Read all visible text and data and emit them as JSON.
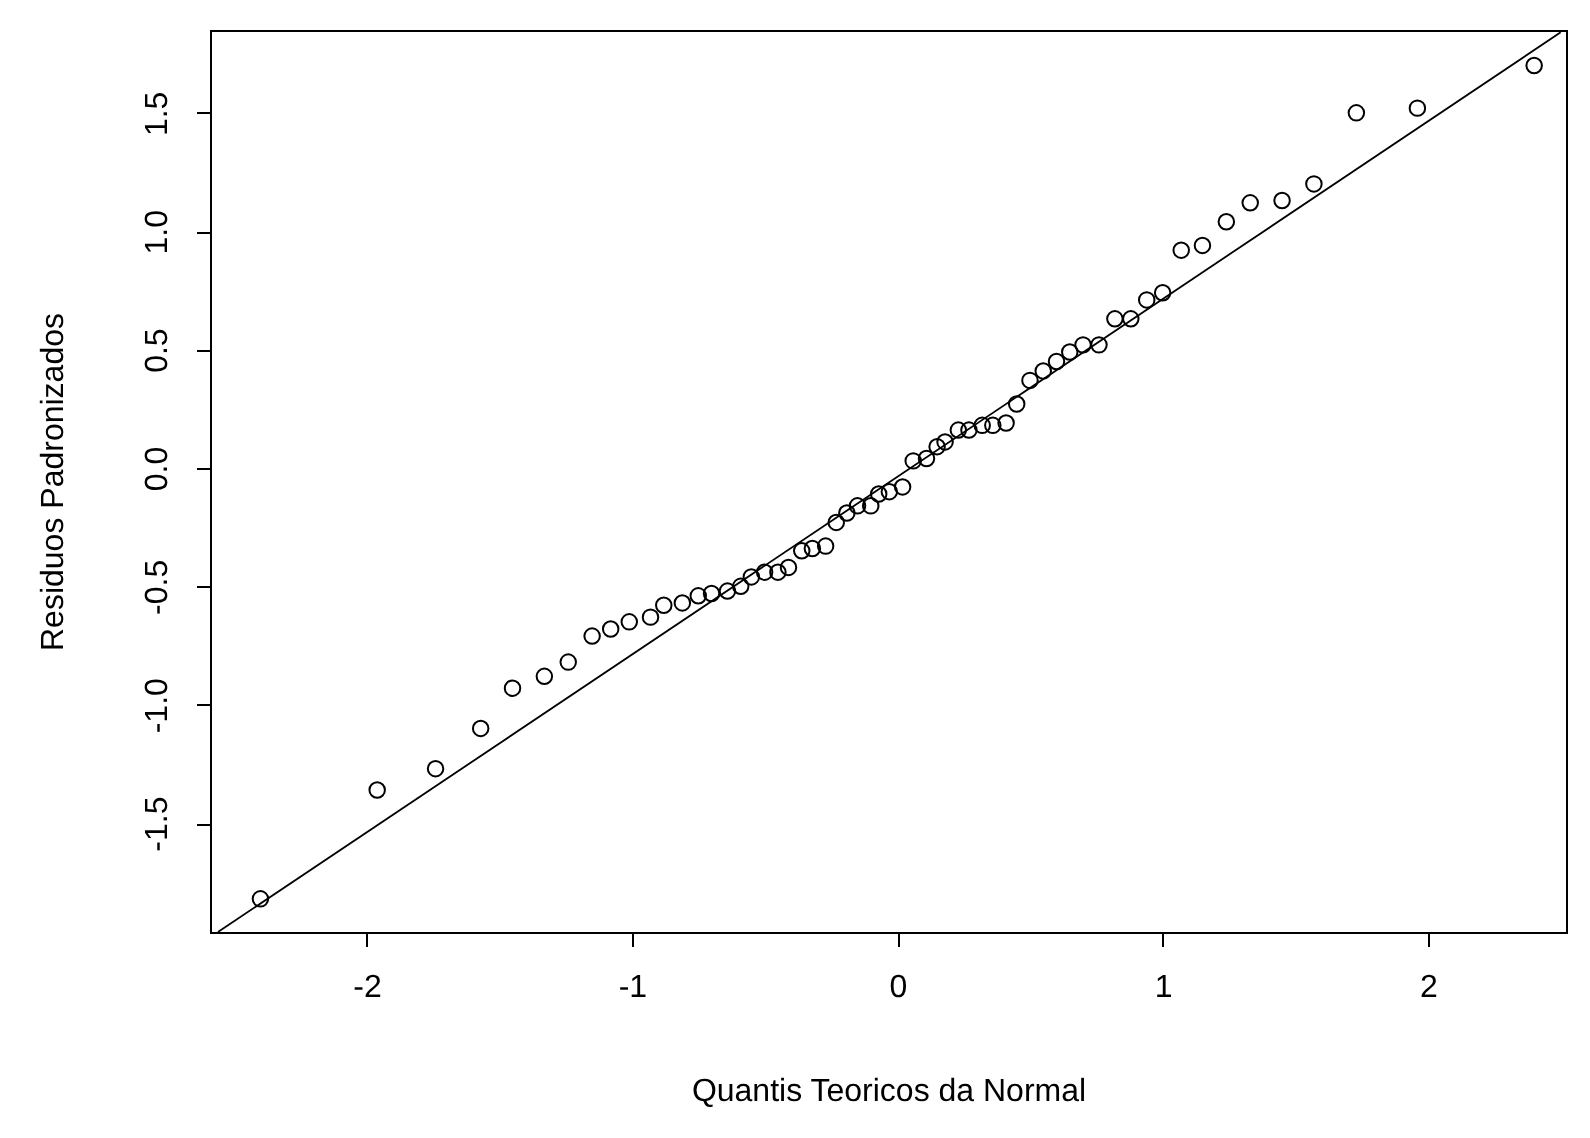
{
  "chart_data": {
    "type": "scatter",
    "xlabel": "Quantis Teoricos da Normal",
    "ylabel": "Residuos Padronizados",
    "marker": "circle",
    "xlim": [
      -2.59,
      2.52
    ],
    "ylim": [
      -1.96,
      1.85
    ],
    "xticks": [
      -2,
      -1,
      0,
      1,
      2
    ],
    "yticks": [
      -1.5,
      {
        "value": -1,
        "label": "-1.0"
      },
      -0.5,
      {
        "value": 0,
        "label": "0.0"
      },
      0.5,
      {
        "value": 1,
        "label": "1.0"
      },
      1.5
    ],
    "series": [
      {
        "color": "#000000",
        "x": [
          -2.4,
          -1.96,
          -1.74,
          -1.57,
          -1.45,
          -1.33,
          -1.24,
          -1.15,
          -1.08,
          -1.01,
          -0.93,
          -0.88,
          -0.81,
          -0.75,
          -0.7,
          -0.64,
          -0.59,
          -0.55,
          -0.5,
          -0.45,
          -0.41,
          -0.36,
          -0.32,
          -0.27,
          -0.23,
          -0.19,
          -0.15,
          -0.1,
          -0.07,
          -0.03,
          0.02,
          0.06,
          0.11,
          0.15,
          0.18,
          0.23,
          0.27,
          0.32,
          0.36,
          0.41,
          0.45,
          0.5,
          0.55,
          0.6,
          0.65,
          0.7,
          0.76,
          0.82,
          0.88,
          0.94,
          1.0,
          1.07,
          1.15,
          1.24,
          1.33,
          1.45,
          1.57,
          1.73,
          1.96,
          2.4
        ],
        "values": [
          -1.82,
          -1.36,
          -1.27,
          -1.1,
          -0.93,
          -0.88,
          -0.82,
          -0.71,
          -0.68,
          -0.65,
          -0.63,
          -0.58,
          -0.57,
          -0.54,
          -0.53,
          -0.52,
          -0.5,
          -0.46,
          -0.44,
          -0.44,
          -0.42,
          -0.35,
          -0.34,
          -0.33,
          -0.23,
          -0.19,
          -0.16,
          -0.16,
          -0.11,
          -0.1,
          -0.08,
          0.03,
          0.04,
          0.09,
          0.11,
          0.16,
          0.16,
          0.18,
          0.18,
          0.19,
          0.27,
          0.37,
          0.41,
          0.45,
          0.49,
          0.52,
          0.52,
          0.63,
          0.63,
          0.71,
          0.74,
          0.92,
          0.94,
          1.04,
          1.12,
          1.13,
          1.2,
          1.5,
          1.52,
          1.7
        ]
      },
      {
        "type": "line",
        "marker": "none",
        "color": "#000000",
        "x": [
          -2.56,
          2.5
        ],
        "values": [
          -1.96,
          1.84
        ]
      }
    ]
  }
}
